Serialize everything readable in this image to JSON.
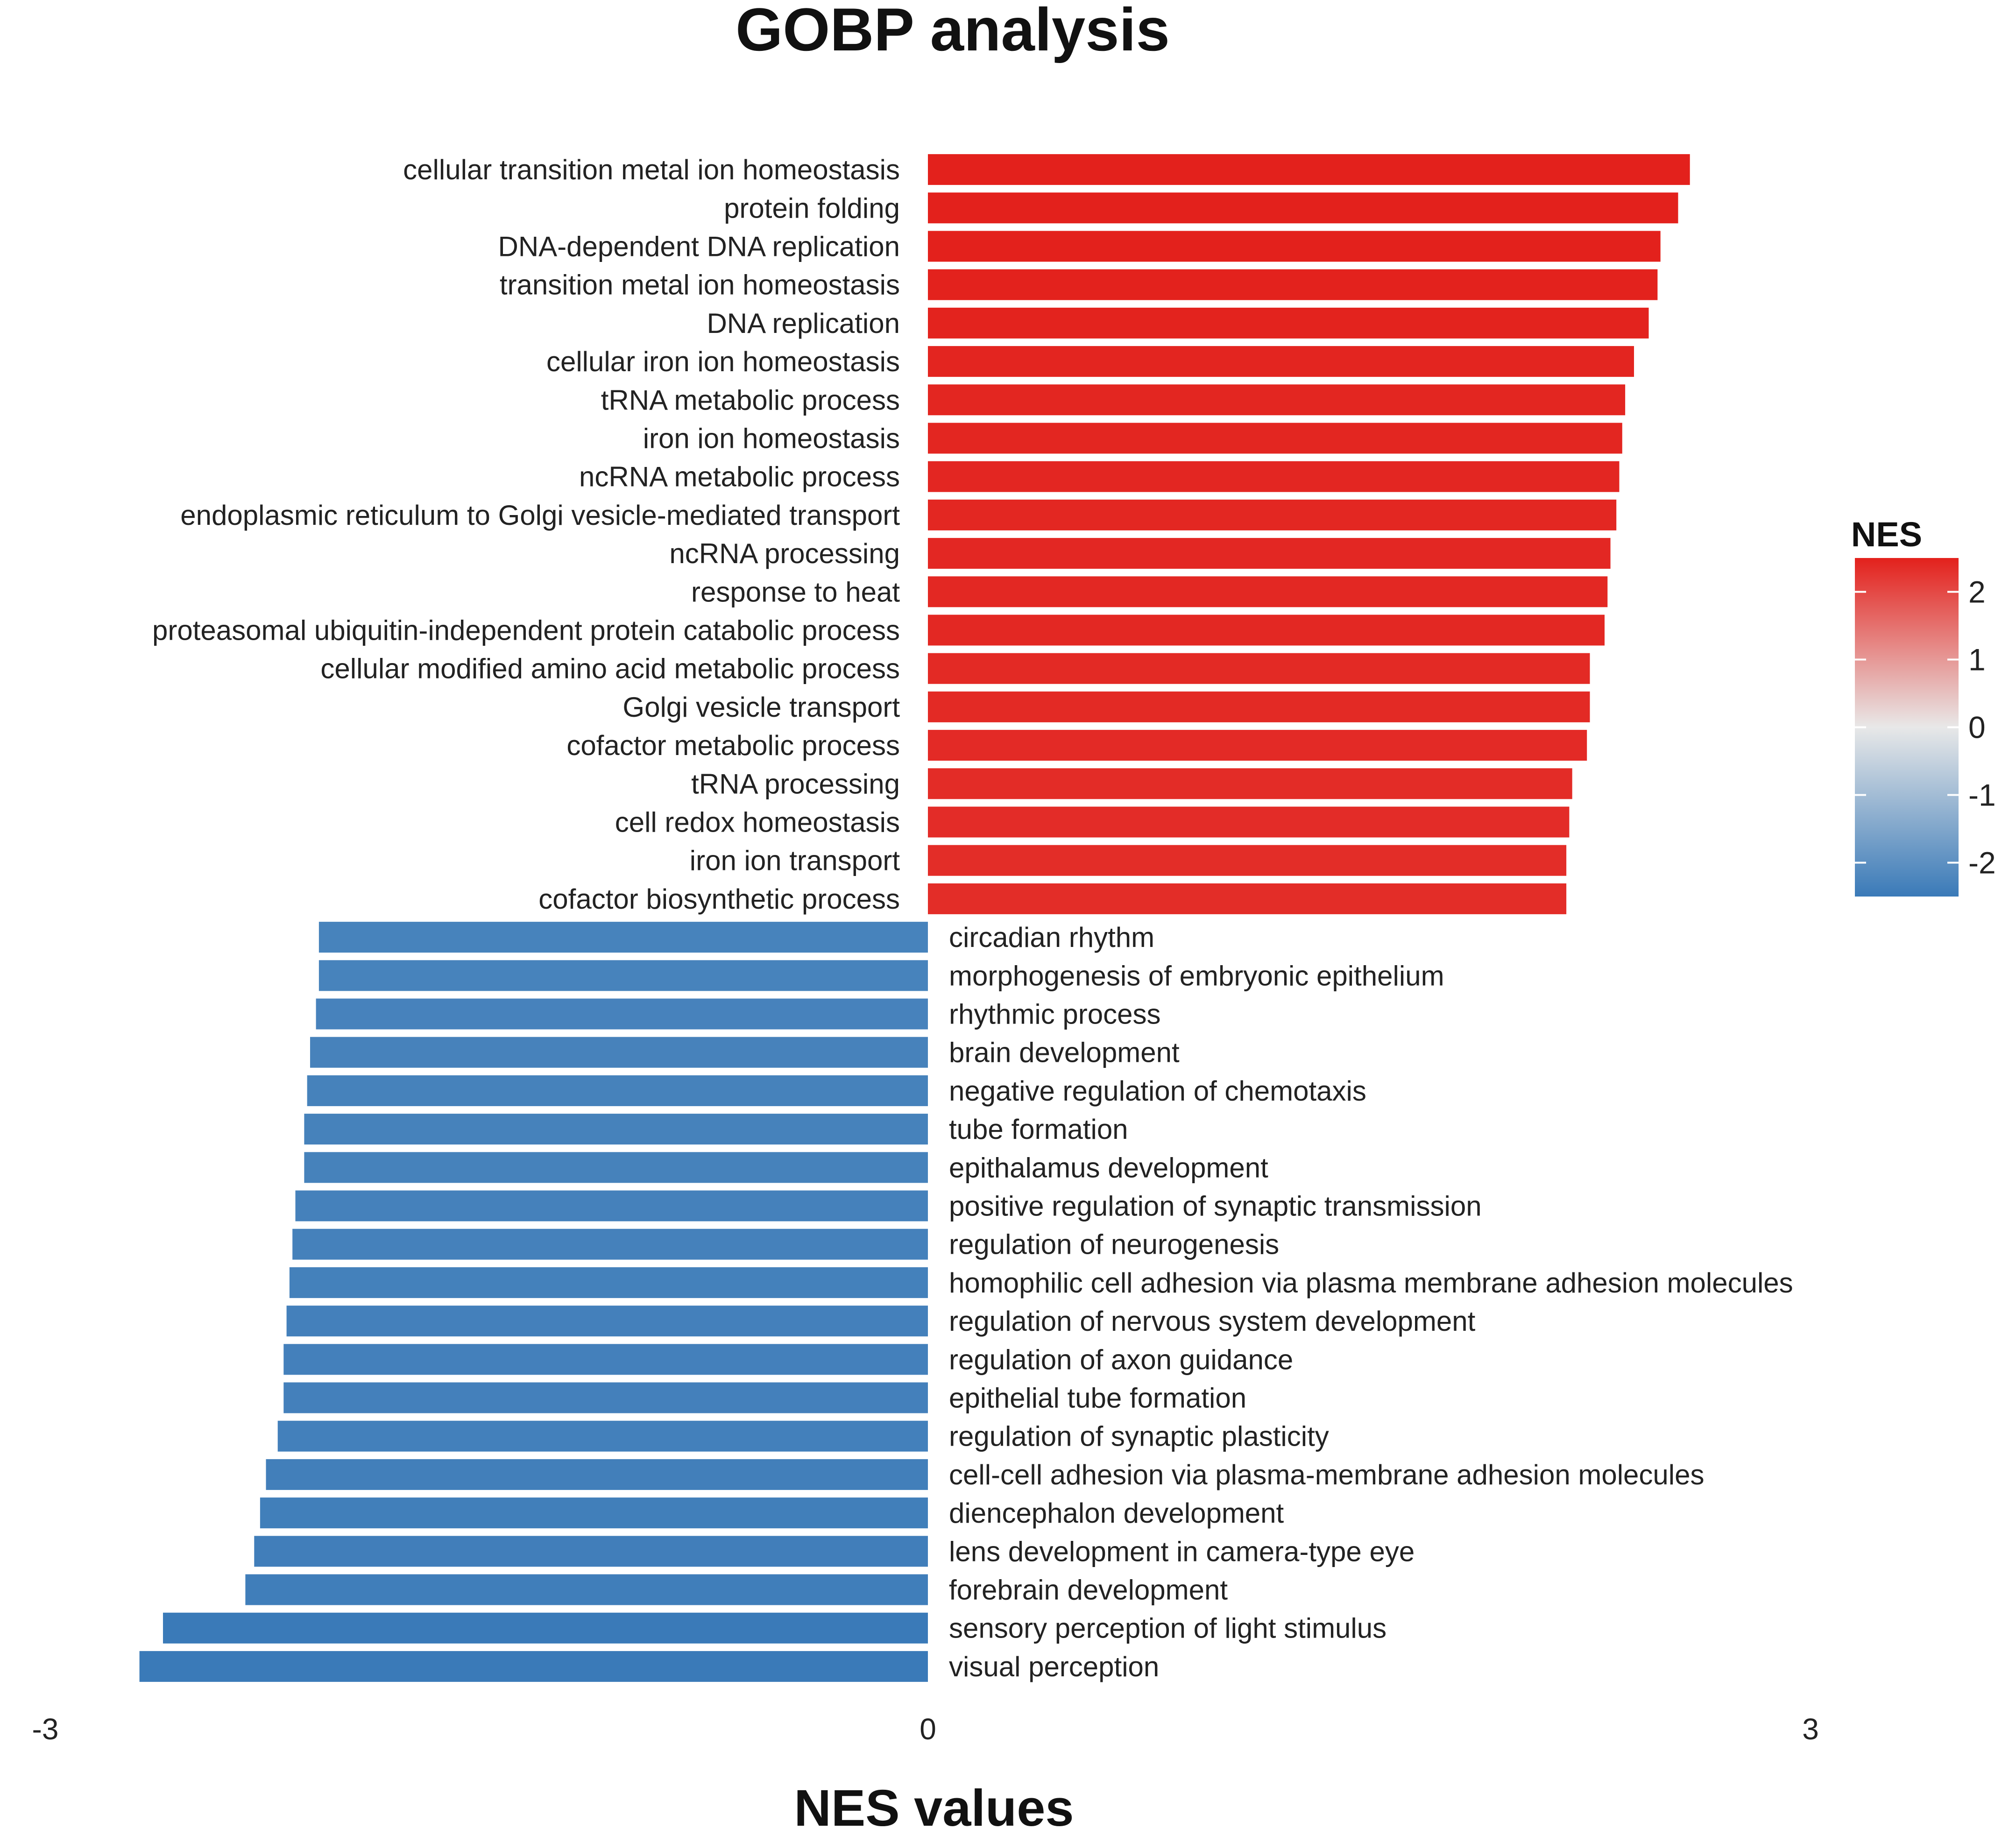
{
  "chart_data": {
    "type": "bar",
    "orientation": "horizontal",
    "title": "GOBP analysis",
    "xlabel": "NES values",
    "ylabel": "",
    "xlim": [
      -3,
      3
    ],
    "xticks": [
      "-3",
      "0",
      "3"
    ],
    "legend": {
      "title": "NES",
      "ticks": [
        "2",
        "1",
        "0",
        "-1",
        "-2"
      ],
      "range": [
        -2.5,
        2.5
      ],
      "placement": "right",
      "colors": {
        "high": "#e3211c",
        "mid": "#e8e8e8",
        "low": "#3a7ab8"
      }
    },
    "categories": [
      "cellular transition metal ion homeostasis",
      "protein folding",
      "DNA-dependent DNA replication",
      "transition metal ion homeostasis",
      "DNA replication",
      "cellular iron ion homeostasis",
      "tRNA metabolic process",
      "iron ion homeostasis",
      "ncRNA metabolic process",
      "endoplasmic reticulum to Golgi vesicle-mediated transport",
      "ncRNA processing",
      "response to heat",
      "proteasomal ubiquitin-independent protein catabolic process",
      "cellular modified amino acid metabolic process",
      "Golgi vesicle transport",
      "cofactor metabolic process",
      "tRNA processing",
      "cell redox homeostasis",
      "iron ion transport",
      "cofactor biosynthetic process",
      "circadian rhythm",
      "morphogenesis of embryonic epithelium",
      "rhythmic process",
      "brain development",
      "negative regulation of chemotaxis",
      "tube formation",
      "epithalamus development",
      "positive regulation of synaptic transmission",
      "regulation of neurogenesis",
      "homophilic cell adhesion via plasma membrane adhesion molecules",
      "regulation of nervous system development",
      "regulation of axon guidance",
      "epithelial tube formation",
      "regulation of synaptic plasticity",
      "cell-cell adhesion via plasma-membrane adhesion molecules",
      "diencephalon development",
      "lens development in camera-type eye",
      "forebrain development",
      "sensory perception of light stimulus",
      "visual perception"
    ],
    "values": [
      2.59,
      2.55,
      2.49,
      2.48,
      2.45,
      2.4,
      2.37,
      2.36,
      2.35,
      2.34,
      2.32,
      2.31,
      2.3,
      2.25,
      2.25,
      2.24,
      2.19,
      2.18,
      2.17,
      2.17,
      -2.07,
      -2.07,
      -2.08,
      -2.1,
      -2.11,
      -2.12,
      -2.12,
      -2.15,
      -2.16,
      -2.17,
      -2.18,
      -2.19,
      -2.19,
      -2.21,
      -2.25,
      -2.27,
      -2.29,
      -2.32,
      -2.6,
      -2.68
    ]
  }
}
